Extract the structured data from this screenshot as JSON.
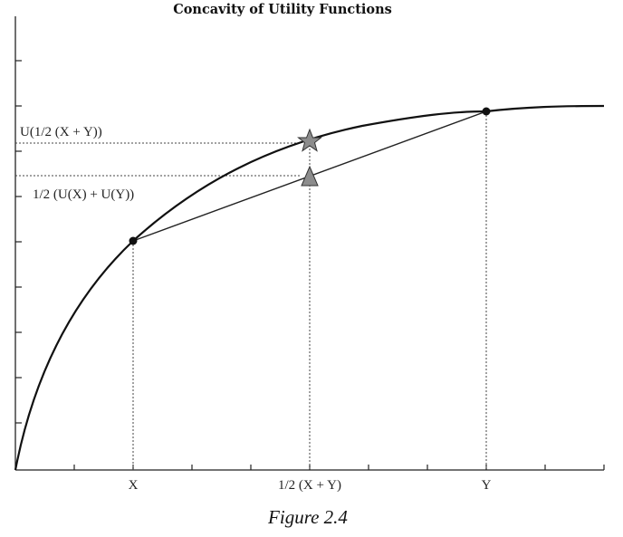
{
  "figure": {
    "title": "Concavity of Utility Functions",
    "caption": "Figure 2.4"
  },
  "x_axis": {
    "labels": {
      "x": "X",
      "mid": "1/2 (X + Y)",
      "y": "Y"
    }
  },
  "annotations": {
    "utility_of_average": "U(1/2 (X + Y))",
    "average_of_utilities": "1/2 (U(X) + U(Y))"
  },
  "markers": {
    "star": "star-icon",
    "triangle": "triangle-icon"
  },
  "colors": {
    "line": "#111111",
    "marker_fill": "#8c8c8c"
  }
}
